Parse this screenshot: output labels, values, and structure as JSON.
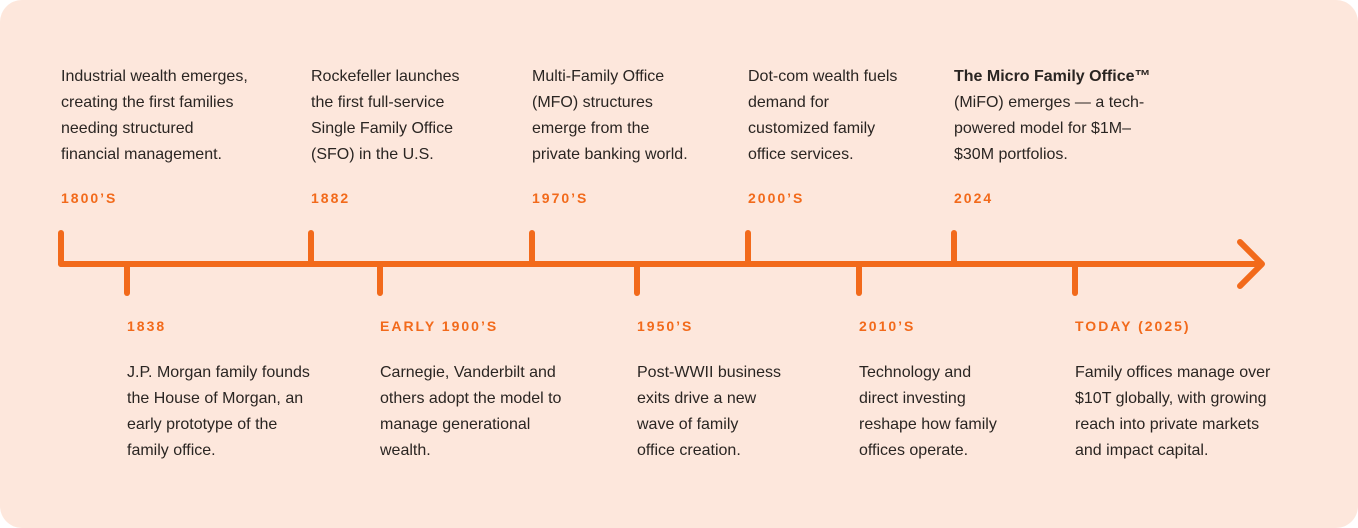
{
  "colors": {
    "background": "#fde7dc",
    "accent": "#f26a1b",
    "text": "#2a2522"
  },
  "events": [
    {
      "year": "1800’S",
      "text": "Industrial wealth emerges,\ncreating the first families\nneeding structured\nfinancial management."
    },
    {
      "year": "1838",
      "text": "J.P. Morgan family founds\nthe House of Morgan, an\nearly prototype of the\nfamily office."
    },
    {
      "year": "1882",
      "text": "Rockefeller launches\nthe first full-service\nSingle Family Office\n(SFO) in the U.S."
    },
    {
      "year": "EARLY 1900’S",
      "text": "Carnegie, Vanderbilt and\nothers adopt the model to\nmanage generational\nwealth."
    },
    {
      "year": "1970’S",
      "text": "Multi-Family Office\n(MFO) structures\nemerge from the\nprivate banking world."
    },
    {
      "year": "1950’S",
      "text": "Post-WWII business\nexits drive a new\nwave of family\noffice creation."
    },
    {
      "year": "2000’S",
      "text": "Dot-com wealth fuels\ndemand for\ncustomized family\noffice services."
    },
    {
      "year": "2010’S",
      "text": "Technology and\ndirect investing\nreshape how family\noffices operate."
    },
    {
      "year": "2024",
      "bold": "The Micro Family Office™",
      "text": "\n(MiFO) emerges — a tech-\npowered model for $1M–\n$30M portfolios."
    },
    {
      "year": "TODAY (2025)",
      "text": "Family offices manage over\n$10T globally, with growing\nreach into private markets\nand impact capital."
    }
  ]
}
